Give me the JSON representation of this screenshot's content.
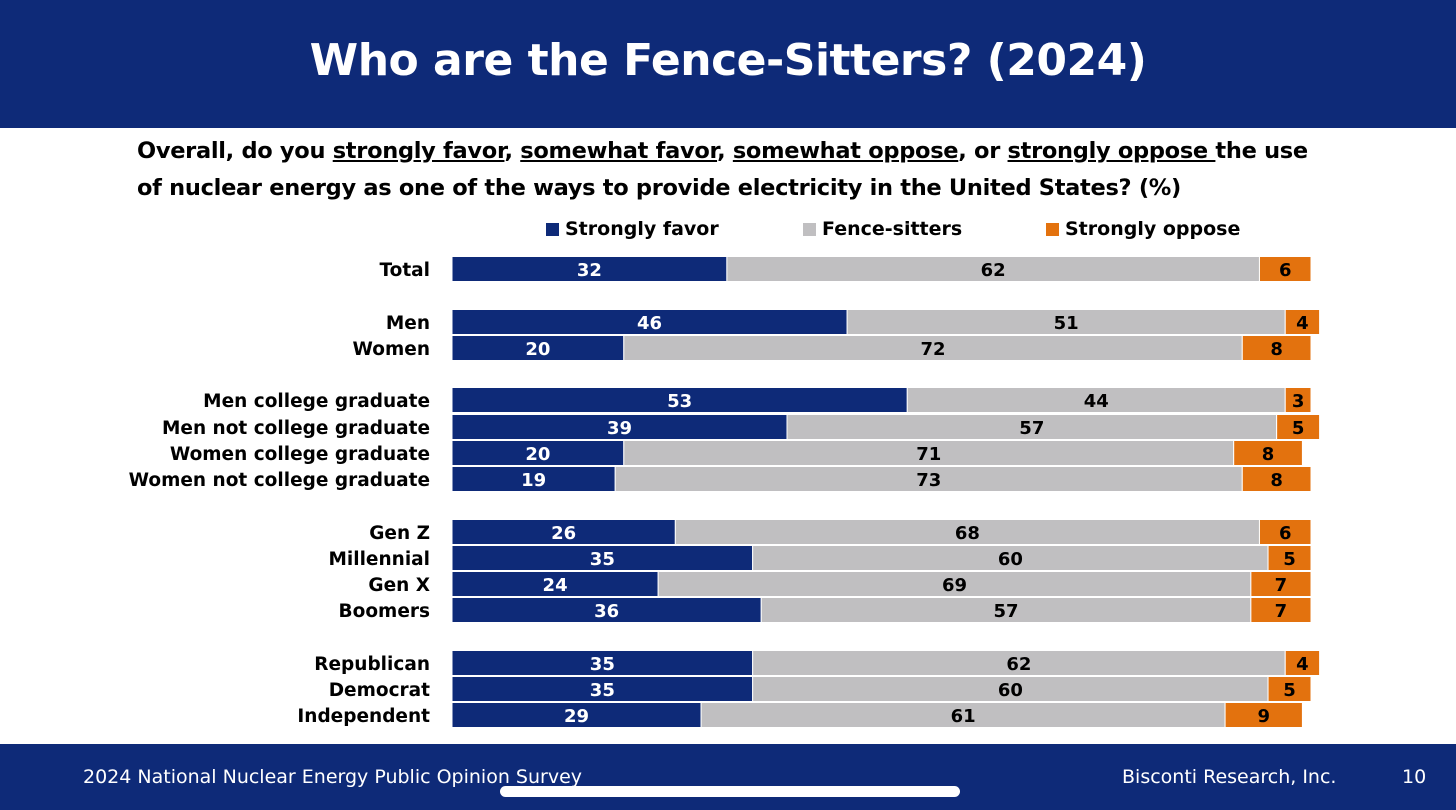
{
  "slide": {
    "title": "Who are the Fence-Sitters? (2024)",
    "question_parts": [
      {
        "text": "Overall, do you ",
        "underline": false
      },
      {
        "text": "strongly favor",
        "underline": true
      },
      {
        "text": ", ",
        "underline": false
      },
      {
        "text": "somewhat favor",
        "underline": true
      },
      {
        "text": ", ",
        "underline": false
      },
      {
        "text": "somewhat oppose",
        "underline": true
      },
      {
        "text": ", or ",
        "underline": false
      },
      {
        "text": "strongly oppose ",
        "underline": true
      },
      {
        "text": "the use of nuclear energy as one of the ways to provide electricity in the United States? (%)",
        "underline": false
      }
    ]
  },
  "footer": {
    "survey_name": "2024 National Nuclear Energy Public Opinion Survey",
    "organization": "Bisconti Research, Inc.",
    "page_number": "10"
  },
  "colors": {
    "header_bg": "#0e2a78",
    "strongly_favor": "#0e2a78",
    "fence_sitters": "#c0bfc1",
    "strongly_oppose": "#e3720e"
  },
  "chart_data": {
    "type": "bar",
    "orientation": "horizontal",
    "stacked": true,
    "xlim": [
      0,
      100
    ],
    "legend_position": "top",
    "series": [
      {
        "name": "Strongly favor",
        "color": "#0e2a78",
        "label_color": "#ffffff",
        "values": [
          32,
          46,
          20,
          53,
          39,
          20,
          19,
          26,
          35,
          24,
          36,
          35,
          35,
          29
        ]
      },
      {
        "name": "Fence-sitters",
        "color": "#c0bfc1",
        "label_color": "#000000",
        "values": [
          62,
          51,
          72,
          44,
          57,
          71,
          73,
          68,
          60,
          69,
          57,
          62,
          60,
          61
        ]
      },
      {
        "name": "Strongly oppose",
        "color": "#e3720e",
        "label_color": "#000000",
        "values": [
          6,
          4,
          8,
          3,
          5,
          8,
          8,
          6,
          5,
          7,
          7,
          4,
          5,
          9
        ]
      }
    ],
    "categories": [
      "Total",
      "Men",
      "Women",
      "Men college graduate",
      "Men not college graduate",
      "Women college graduate",
      "Women not college graduate",
      "Gen Z",
      "Millennial",
      "Gen X",
      "Boomers",
      "Republican",
      "Democrat",
      "Independent"
    ],
    "groups": [
      [
        0
      ],
      [
        1,
        2
      ],
      [
        3,
        4,
        5,
        6
      ],
      [
        7,
        8,
        9,
        10
      ],
      [
        11,
        12,
        13
      ]
    ]
  }
}
